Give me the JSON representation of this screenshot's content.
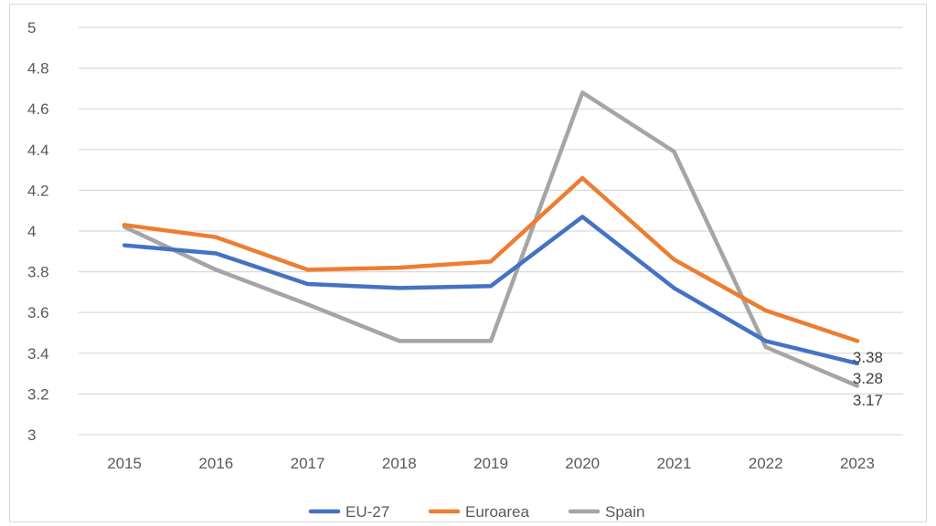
{
  "chart_data": {
    "type": "line",
    "title": "",
    "xlabel": "",
    "ylabel": "",
    "categories": [
      "2015",
      "2016",
      "2017",
      "2018",
      "2019",
      "2020",
      "2021",
      "2022",
      "2023"
    ],
    "ylim": [
      3,
      5
    ],
    "yticks": [
      "3",
      "3.2",
      "3.4",
      "3.6",
      "3.8",
      "4",
      "4.2",
      "4.4",
      "4.6",
      "4.8",
      "5"
    ],
    "grid": true,
    "legend_position": "bottom",
    "series": [
      {
        "name": "EU-27",
        "color": "#4472c4",
        "values": [
          3.93,
          3.89,
          3.74,
          3.72,
          3.73,
          4.07,
          3.72,
          3.46,
          3.35
        ]
      },
      {
        "name": "Euroarea",
        "color": "#ed7d31",
        "values": [
          4.03,
          3.97,
          3.81,
          3.82,
          3.85,
          4.26,
          3.86,
          3.61,
          3.46
        ]
      },
      {
        "name": "Spain",
        "color": "#a5a5a5",
        "values": [
          4.02,
          3.81,
          3.64,
          3.46,
          3.46,
          4.68,
          4.39,
          3.43,
          3.24
        ]
      }
    ],
    "data_labels": [
      "3.38",
      "3.28",
      "3.17"
    ]
  }
}
